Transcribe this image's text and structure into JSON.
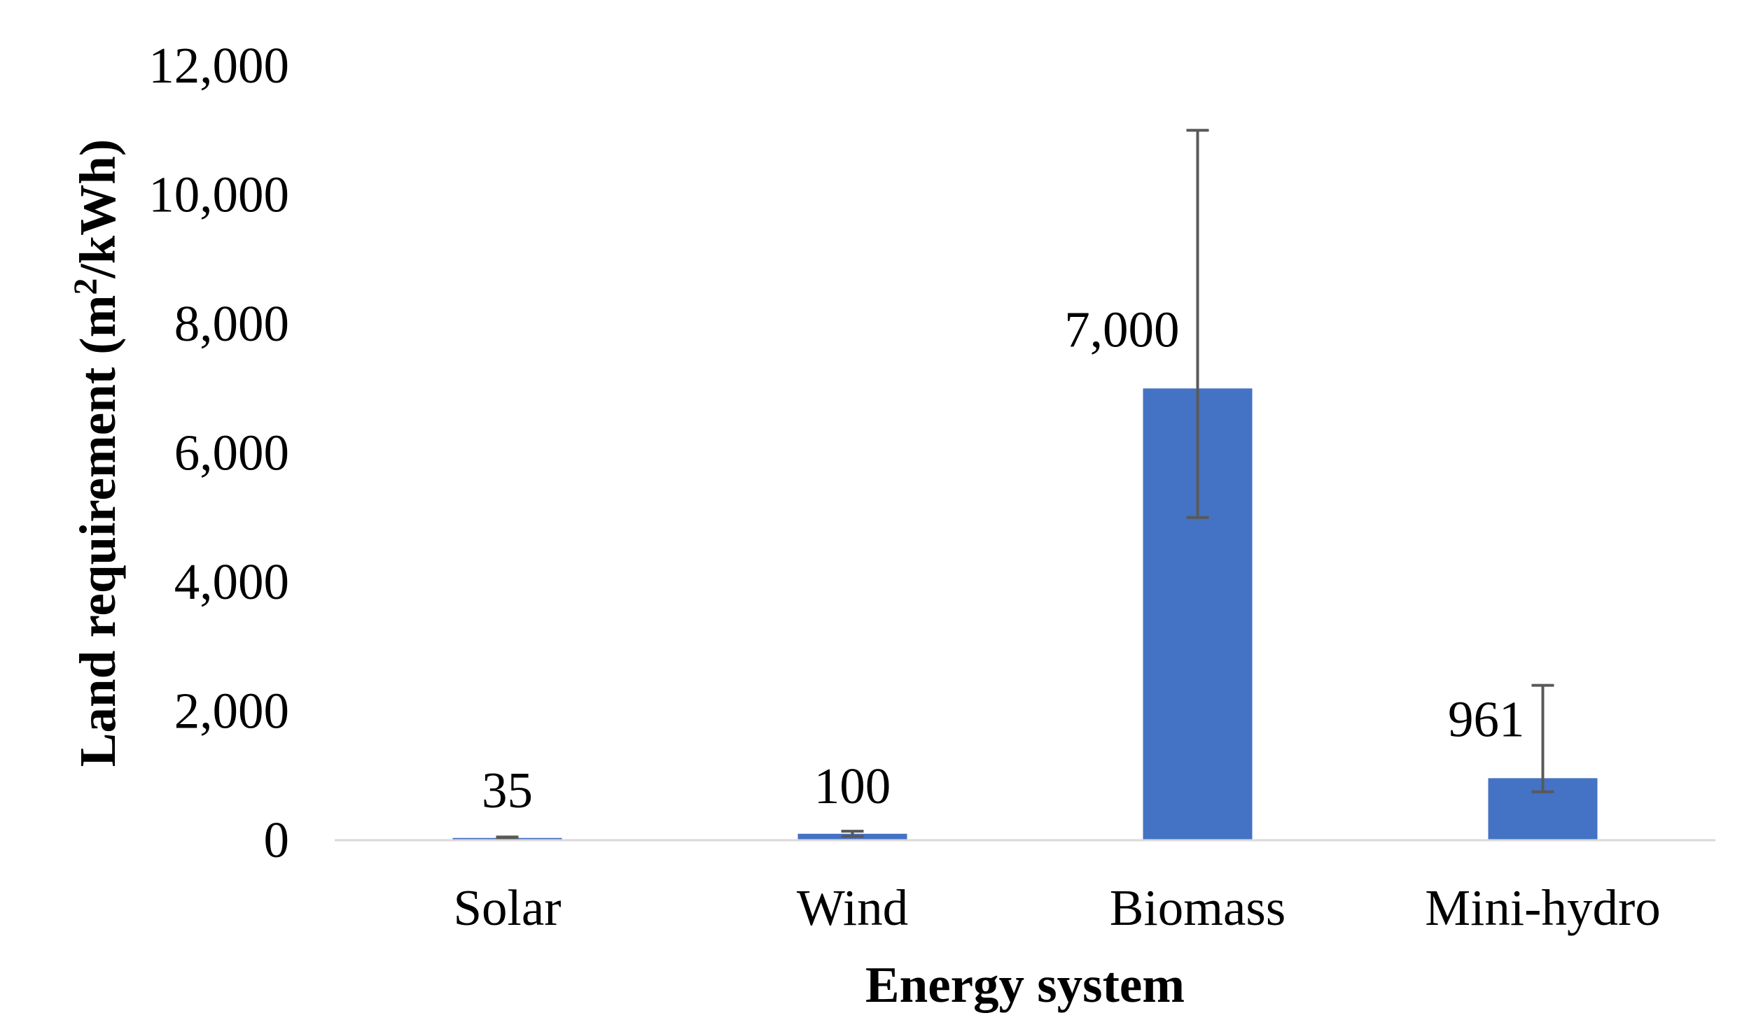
{
  "chart_data": {
    "type": "bar",
    "title": "",
    "xlabel": "Energy system",
    "ylabel_parts": {
      "prefix": "Land requirement (m",
      "superscript": "2",
      "suffix": "/kWh)"
    },
    "categories": [
      "Solar",
      "Wind",
      "Biomass",
      "Mini-hydro"
    ],
    "values": [
      35,
      100,
      7000,
      961
    ],
    "data_labels": [
      "35",
      "100",
      "7,000",
      "961"
    ],
    "error_bars": [
      {
        "low": 20,
        "high": 50
      },
      {
        "low": 60,
        "high": 140
      },
      {
        "low": 5000,
        "high": 11000
      },
      {
        "low": 750,
        "high": 2400
      }
    ],
    "ylim": [
      0,
      12000
    ],
    "yticks": [
      0,
      2000,
      4000,
      6000,
      8000,
      10000,
      12000
    ],
    "ytick_labels": [
      "0",
      "2,000",
      "4,000",
      "6,000",
      "8,000",
      "10,000",
      "12,000"
    ],
    "grid": false,
    "legend": "none",
    "colors": {
      "bar": "#4472C4",
      "error_bar": "#595959",
      "axis_line": "#D9D9D9",
      "text": "#000000"
    }
  }
}
